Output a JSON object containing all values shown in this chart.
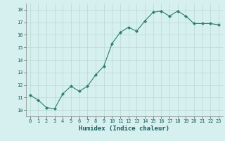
{
  "x": [
    0,
    1,
    2,
    3,
    4,
    5,
    6,
    7,
    8,
    9,
    10,
    11,
    12,
    13,
    14,
    15,
    16,
    17,
    18,
    19,
    20,
    21,
    22,
    23
  ],
  "y": [
    11.2,
    10.8,
    10.2,
    10.1,
    11.3,
    11.9,
    11.5,
    11.9,
    12.8,
    13.5,
    15.3,
    16.2,
    16.6,
    16.3,
    17.1,
    17.8,
    17.9,
    17.5,
    17.9,
    17.5,
    16.9,
    16.9,
    16.9,
    16.8
  ],
  "line_color": "#2e7d6e",
  "marker": "D",
  "marker_size": 2.2,
  "bg_color": "#d6f0ef",
  "grid_color": "#b8d8d4",
  "xlabel": "Humidex (Indice chaleur)",
  "xlabel_color": "#1a5c5a",
  "xlim": [
    -0.5,
    23.5
  ],
  "ylim": [
    9.5,
    18.5
  ],
  "yticks": [
    10,
    11,
    12,
    13,
    14,
    15,
    16,
    17,
    18
  ],
  "xticks": [
    0,
    1,
    2,
    3,
    4,
    5,
    6,
    7,
    8,
    9,
    10,
    11,
    12,
    13,
    14,
    15,
    16,
    17,
    18,
    19,
    20,
    21,
    22,
    23
  ],
  "tick_color": "#1a5c5a",
  "tick_fontsize": 5.0,
  "xlabel_fontsize": 6.5,
  "linewidth": 0.8
}
